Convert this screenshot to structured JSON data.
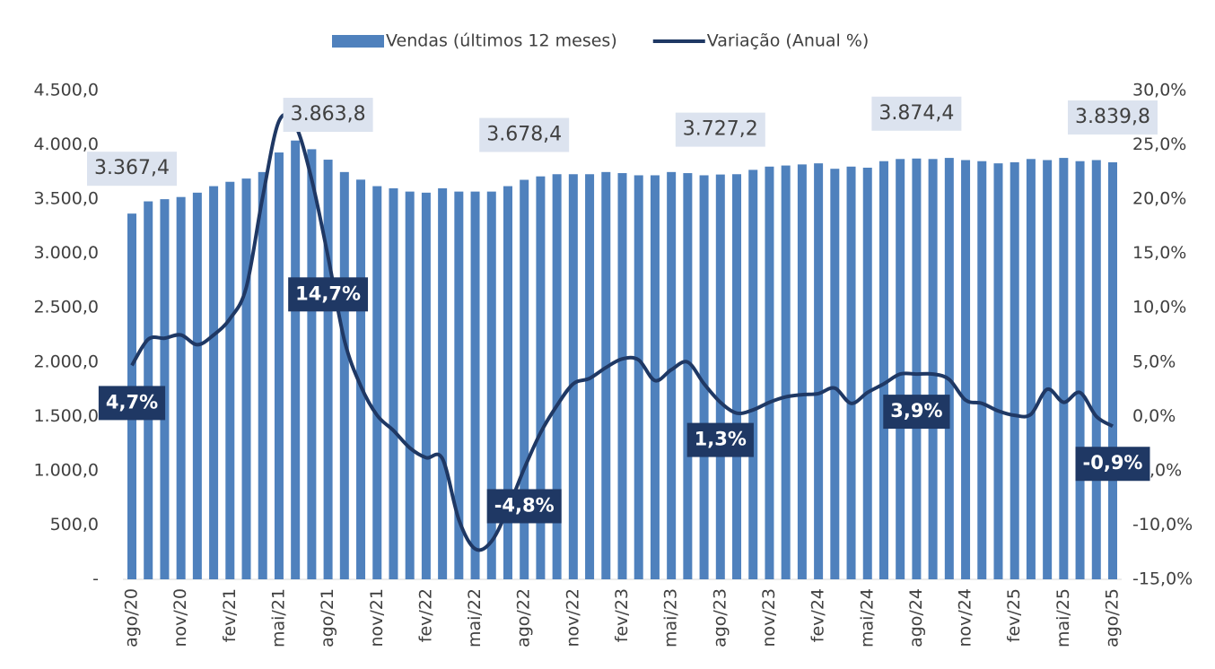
{
  "chart_data": {
    "type": "bar-line",
    "categories": [
      "ago/20",
      null,
      null,
      "nov/20",
      null,
      null,
      "fev/21",
      null,
      null,
      "mai/21",
      null,
      null,
      "ago/21",
      null,
      null,
      "nov/21",
      null,
      null,
      "fev/22",
      null,
      null,
      "mai/22",
      null,
      null,
      "ago/22",
      null,
      null,
      "nov/22",
      null,
      null,
      "fev/23",
      null,
      null,
      "mai/23",
      null,
      null,
      "ago/23",
      null,
      null,
      "nov/23",
      null,
      null,
      "fev/24",
      null,
      null,
      "mai/24",
      null,
      null,
      "ago/24",
      null,
      null,
      "nov/24",
      null,
      null,
      "fev/25",
      null,
      null,
      "mai/25",
      null,
      null,
      "ago/25"
    ],
    "series": [
      {
        "name": "Vendas (últimos 12 meses)",
        "type": "bar",
        "color": "#4f81bd",
        "values": [
          3367.4,
          3480,
          3500,
          3520,
          3560,
          3620,
          3660,
          3690,
          3750,
          3930,
          4040,
          3960,
          3863.8,
          3750,
          3680,
          3620,
          3600,
          3570,
          3560,
          3600,
          3570,
          3570,
          3570,
          3620,
          3678.4,
          3710,
          3730,
          3730,
          3730,
          3750,
          3740,
          3720,
          3720,
          3750,
          3740,
          3720,
          3727.2,
          3730,
          3770,
          3800,
          3810,
          3820,
          3830,
          3780,
          3800,
          3790,
          3850,
          3870,
          3874.4,
          3870,
          3880,
          3860,
          3850,
          3830,
          3840,
          3870,
          3860,
          3880,
          3850,
          3860,
          3839.8
        ],
        "value_labels": [
          "3.367,4",
          null,
          null,
          null,
          null,
          null,
          null,
          null,
          null,
          null,
          null,
          null,
          "3.863,8",
          null,
          null,
          null,
          null,
          null,
          null,
          null,
          null,
          null,
          null,
          null,
          "3.678,4",
          null,
          null,
          null,
          null,
          null,
          null,
          null,
          null,
          null,
          null,
          null,
          "3.727,2",
          null,
          null,
          null,
          null,
          null,
          null,
          null,
          null,
          null,
          null,
          null,
          "3.874,4",
          null,
          null,
          null,
          null,
          null,
          null,
          null,
          null,
          null,
          null,
          null,
          "3.839,8"
        ]
      },
      {
        "name": "Variação (Anual %)",
        "type": "line",
        "axis": "y2",
        "color": "#1f3864",
        "values": [
          4.7,
          7.1,
          7.2,
          7.5,
          6.6,
          7.5,
          9.0,
          11.9,
          20.2,
          27.2,
          26.8,
          21.8,
          14.7,
          7.0,
          2.8,
          0.1,
          -1.3,
          -2.9,
          -3.8,
          -3.9,
          -9.5,
          -12.2,
          -11.5,
          -8.5,
          -4.8,
          -1.5,
          1.0,
          3.0,
          3.5,
          4.5,
          5.3,
          5.2,
          3.3,
          4.3,
          5.0,
          3.0,
          1.3,
          0.3,
          0.6,
          1.3,
          1.8,
          2.0,
          2.1,
          2.6,
          1.2,
          2.2,
          3.0,
          3.9,
          3.9,
          3.9,
          3.4,
          1.5,
          1.2,
          0.5,
          0.1,
          0.2,
          2.5,
          1.3,
          2.2,
          0.0,
          -0.9
        ],
        "value_labels": [
          "4,7%",
          null,
          null,
          null,
          null,
          null,
          null,
          null,
          null,
          null,
          null,
          null,
          "14,7%",
          null,
          null,
          null,
          null,
          null,
          null,
          null,
          null,
          null,
          null,
          null,
          "-4,8%",
          null,
          null,
          null,
          null,
          null,
          null,
          null,
          null,
          null,
          null,
          null,
          "1,3%",
          null,
          null,
          null,
          null,
          null,
          null,
          null,
          null,
          null,
          null,
          null,
          "3,9%",
          null,
          null,
          null,
          null,
          null,
          null,
          null,
          null,
          null,
          null,
          null,
          "-0,9%"
        ]
      }
    ],
    "ylim": [
      0,
      4500
    ],
    "yticks": [
      {
        "value": 0,
        "label": "-"
      },
      {
        "value": 500,
        "label": "500,0"
      },
      {
        "value": 1000,
        "label": "1.000,0"
      },
      {
        "value": 1500,
        "label": "1.500,0"
      },
      {
        "value": 2000,
        "label": "2.000,0"
      },
      {
        "value": 2500,
        "label": "2.500,0"
      },
      {
        "value": 3000,
        "label": "3.000,0"
      },
      {
        "value": 3500,
        "label": "3.500,0"
      },
      {
        "value": 4000,
        "label": "4.000,0"
      },
      {
        "value": 4500,
        "label": "4.500,0"
      }
    ],
    "y2lim": [
      -15,
      30
    ],
    "y2ticks": [
      {
        "value": -15,
        "label": "-15,0%"
      },
      {
        "value": -10,
        "label": "-10,0%"
      },
      {
        "value": -5,
        "label": "-5,0%"
      },
      {
        "value": 0,
        "label": "0,0%"
      },
      {
        "value": 5,
        "label": "5,0%"
      },
      {
        "value": 10,
        "label": "10,0%"
      },
      {
        "value": 15,
        "label": "15,0%"
      },
      {
        "value": 20,
        "label": "20,0%"
      },
      {
        "value": 25,
        "label": "25,0%"
      },
      {
        "value": 30,
        "label": "30,0%"
      }
    ],
    "grid": false,
    "legend": "top"
  }
}
